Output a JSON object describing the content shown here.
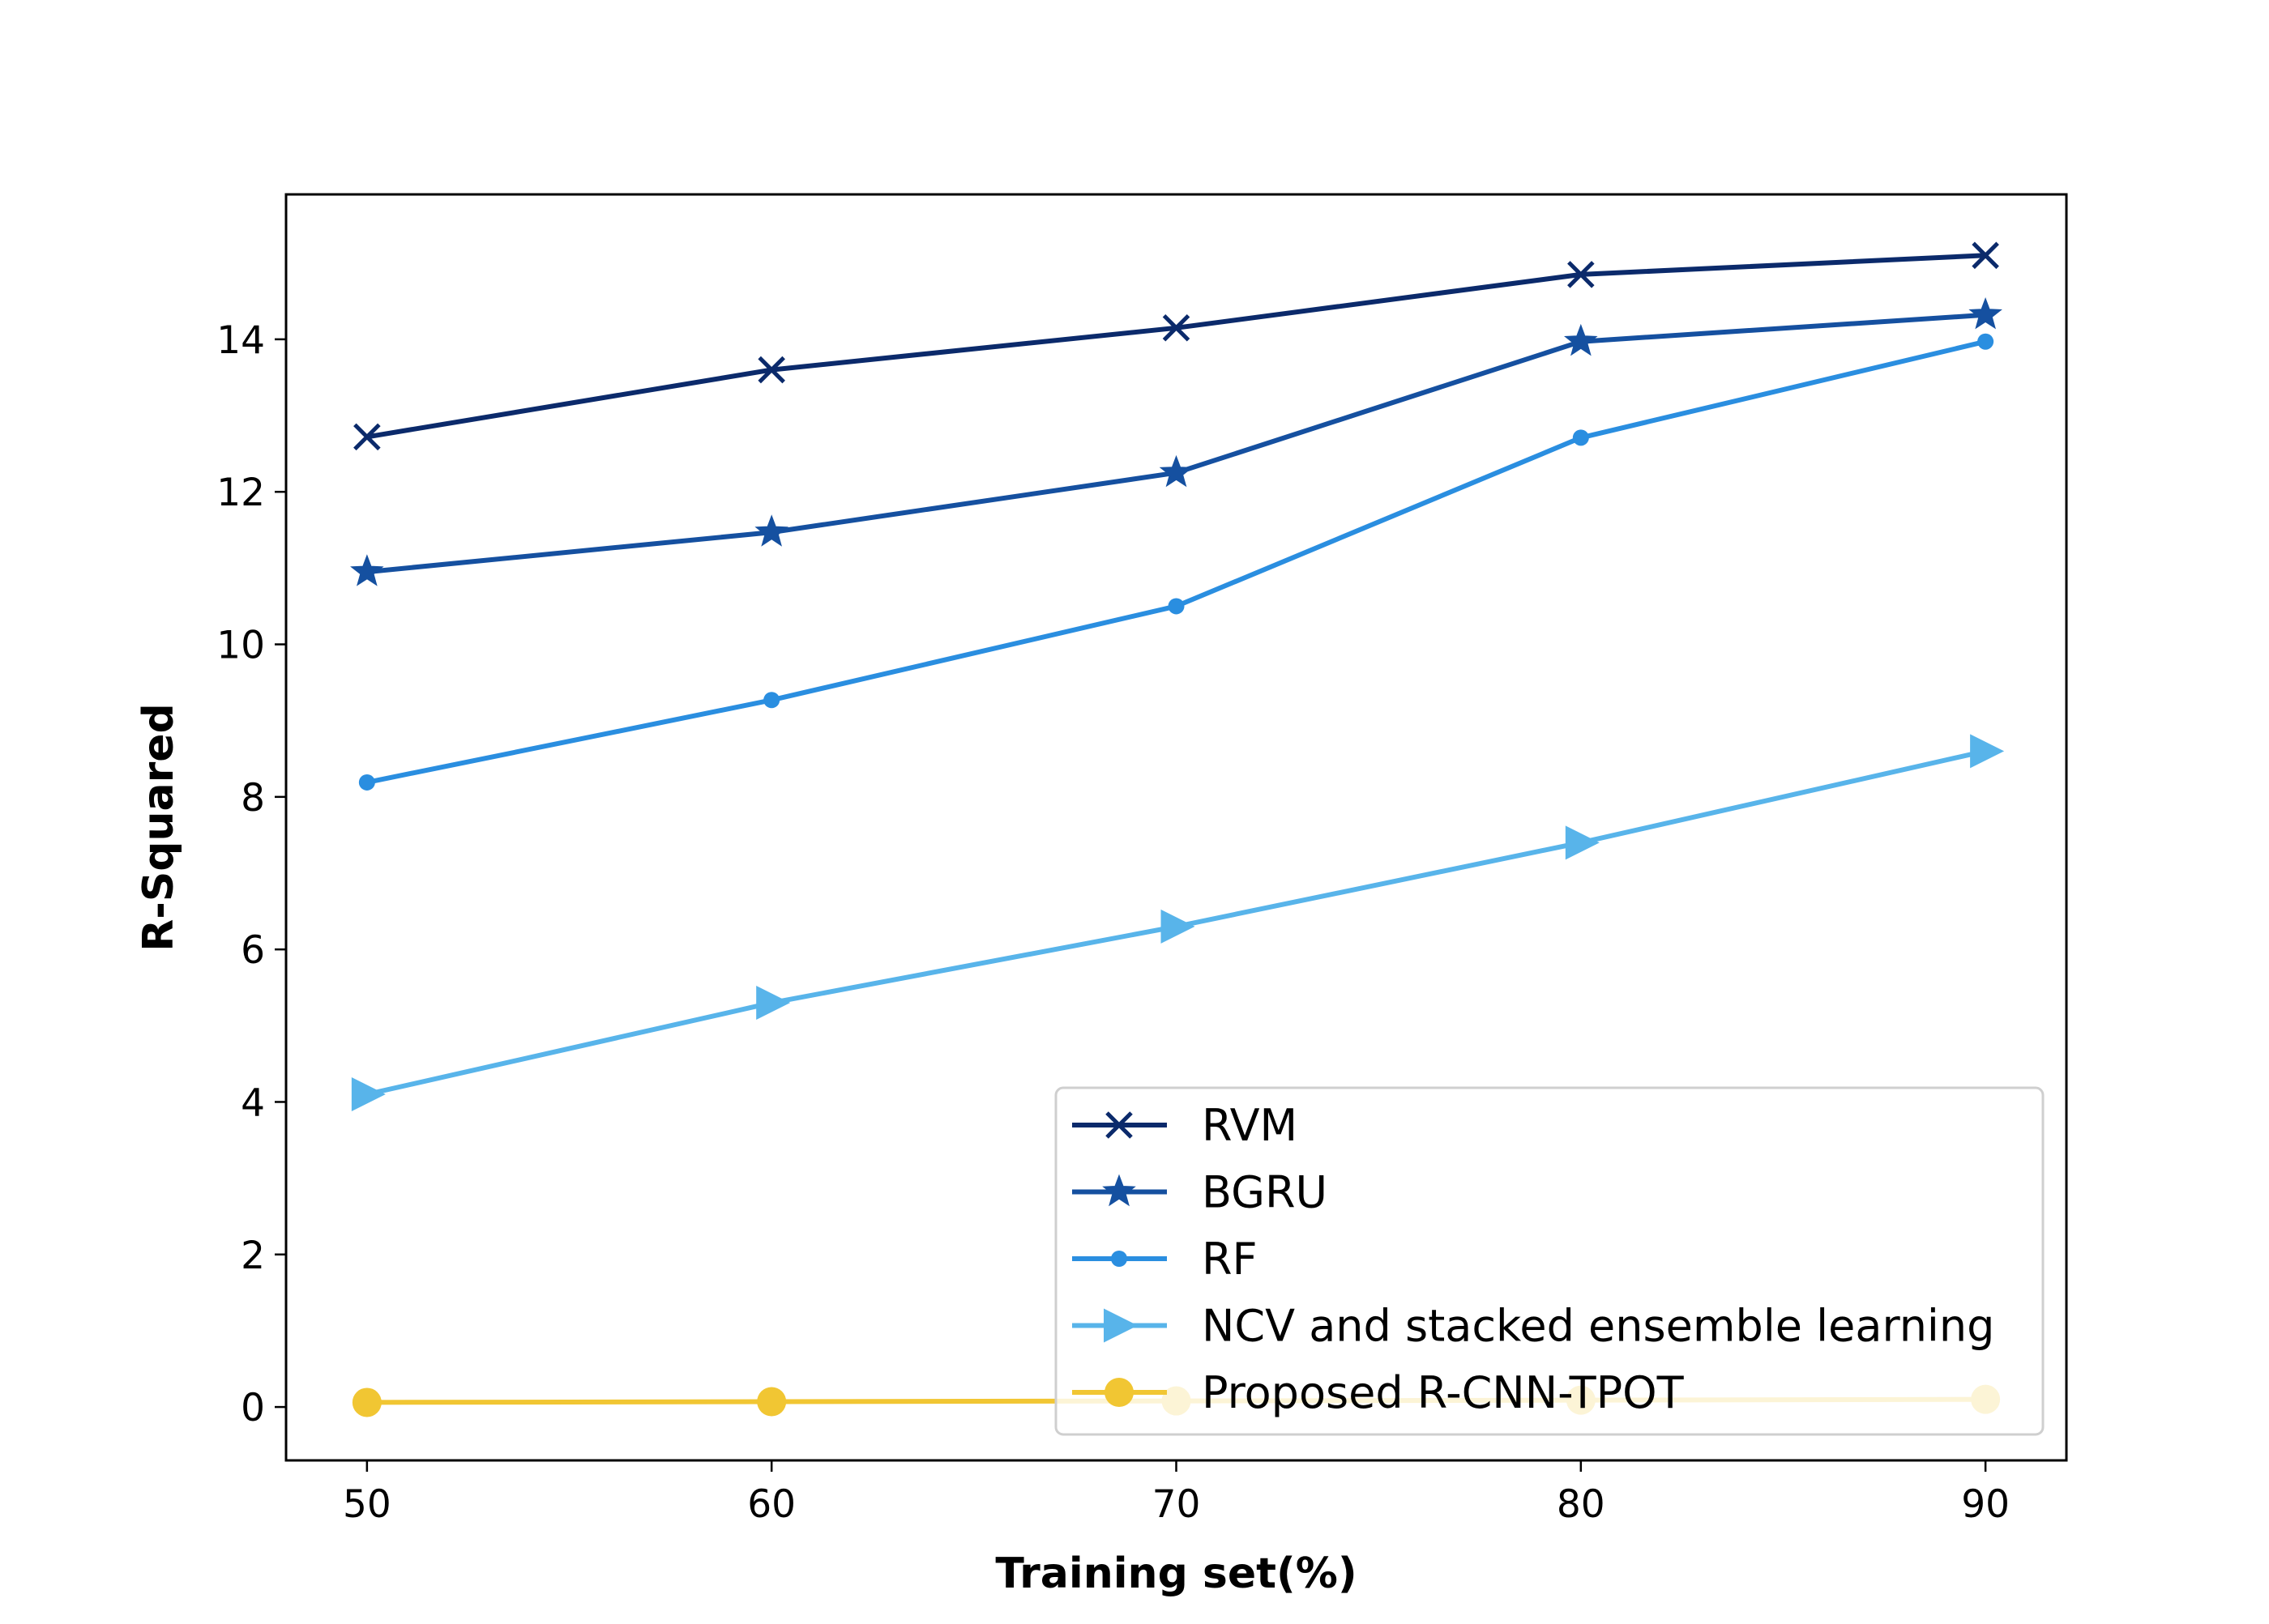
{
  "chart_data": {
    "type": "line",
    "title": "",
    "xlabel": "Training set(%)",
    "ylabel": "R-Squared",
    "x": [
      50,
      60,
      70,
      80,
      90
    ],
    "xticks": [
      50,
      60,
      70,
      80,
      90
    ],
    "yticks": [
      0,
      2,
      4,
      6,
      8,
      10,
      12,
      14
    ],
    "xlim": [
      48,
      92
    ],
    "ylim": [
      -0.7,
      15.9
    ],
    "grid": false,
    "legend": {
      "placement": "lower-right"
    },
    "series": [
      {
        "name": "RVM",
        "marker": "x",
        "color": "#0b2a6b",
        "values": [
          12.72,
          13.6,
          14.15,
          14.85,
          15.1
        ]
      },
      {
        "name": "BGRU",
        "marker": "star",
        "color": "#1550a0",
        "values": [
          10.95,
          11.47,
          12.25,
          13.97,
          14.32
        ]
      },
      {
        "name": "RF",
        "marker": "dot",
        "color": "#2a8ee0",
        "values": [
          8.19,
          9.27,
          10.5,
          12.71,
          13.97
        ]
      },
      {
        "name": "NCV and stacked ensemble learning",
        "marker": "triangle-right",
        "color": "#58b4ea",
        "values": [
          4.1,
          5.3,
          6.3,
          7.4,
          8.6
        ]
      },
      {
        "name": "Proposed R-CNN-TPOT",
        "marker": "circle",
        "color": "#f1c633",
        "values": [
          0.06,
          0.07,
          0.08,
          0.09,
          0.1
        ]
      }
    ]
  }
}
